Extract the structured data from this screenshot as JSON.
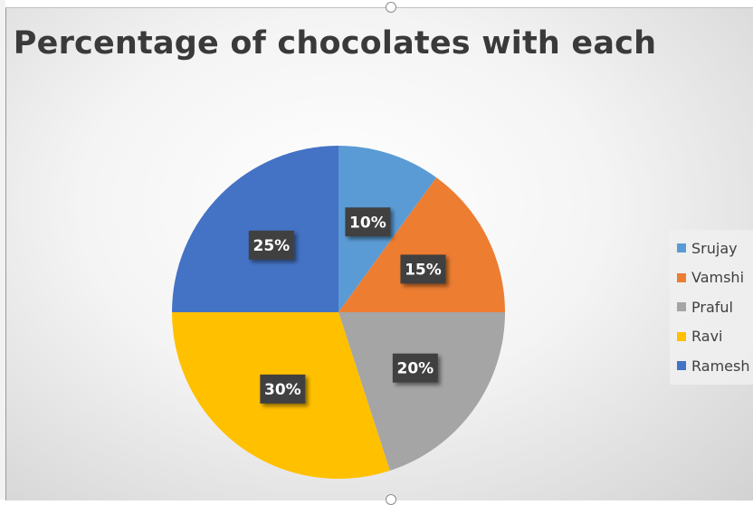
{
  "chart_data": {
    "type": "pie",
    "title": "Percentage of chocolates with each",
    "categories": [
      "Srujay",
      "Vamshi",
      "Praful",
      "Ravi",
      "Ramesh"
    ],
    "values": [
      10,
      15,
      20,
      30,
      25
    ],
    "data_labels": [
      "10%",
      "15%",
      "20%",
      "30%",
      "25%"
    ],
    "colors": [
      "#5b9bd5",
      "#ed7d31",
      "#a5a5a5",
      "#ffc000",
      "#4472c4"
    ],
    "legend_position": "right"
  }
}
